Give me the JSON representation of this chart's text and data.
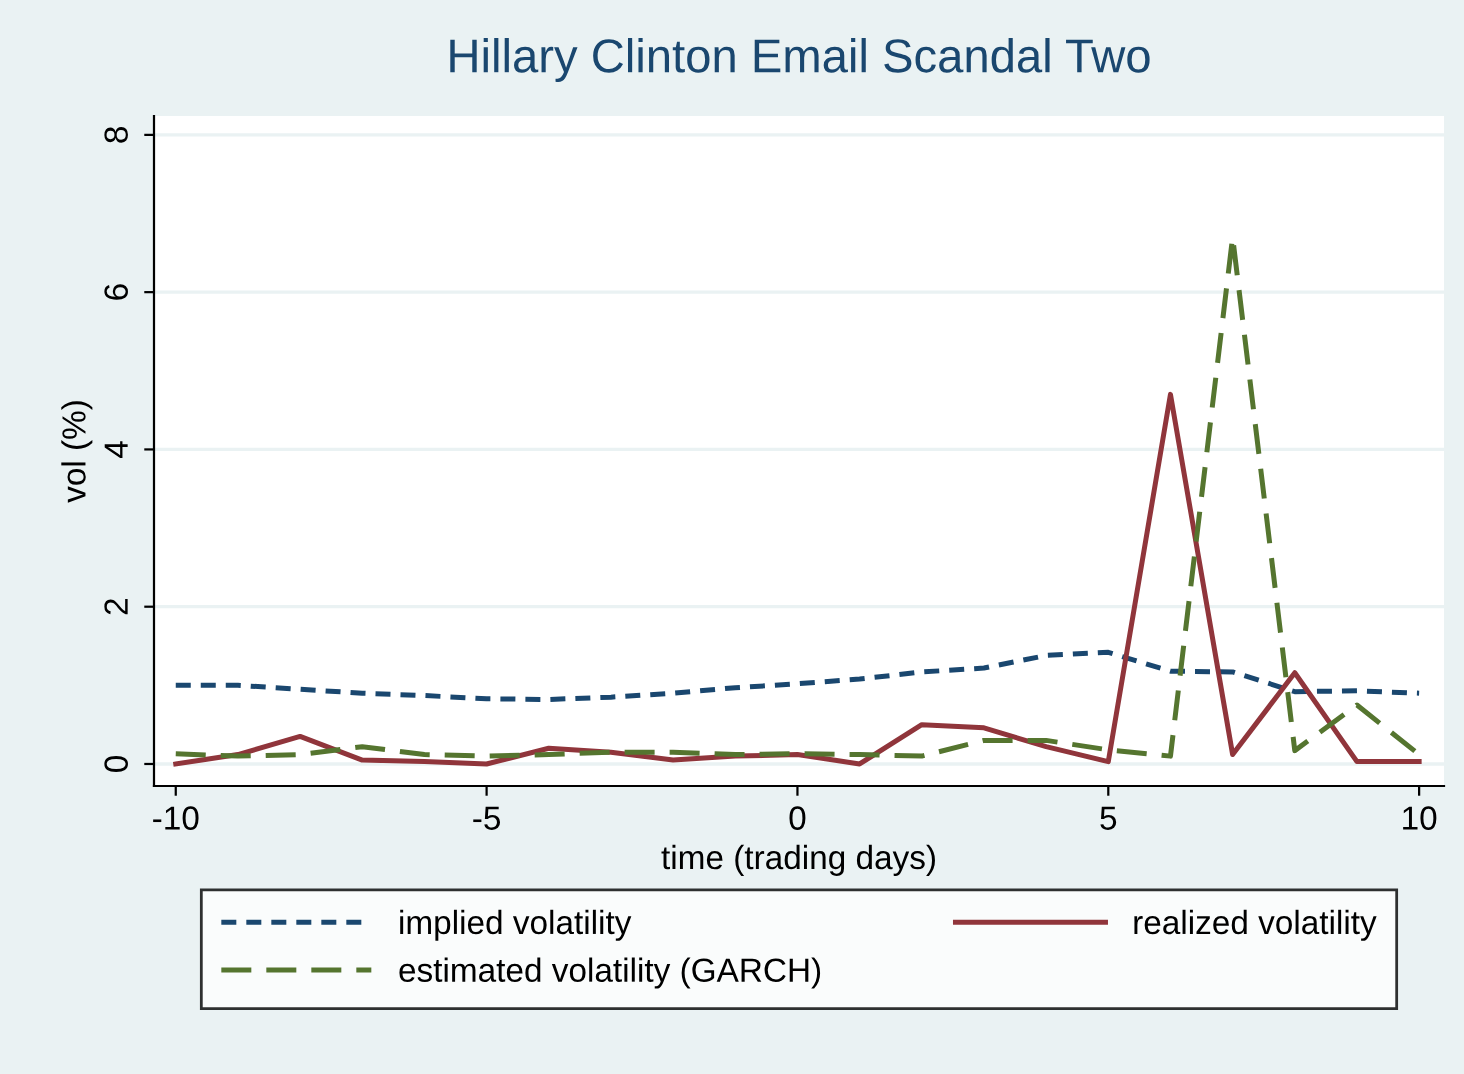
{
  "chart_data": {
    "type": "line",
    "title": "Hillary Clinton Email Scandal Two",
    "xlabel": "time (trading days)",
    "ylabel": "vol (%)",
    "x": [
      -10,
      -9,
      -8,
      -7,
      -6,
      -5,
      -4,
      -3,
      -2,
      -1,
      0,
      1,
      2,
      3,
      4,
      5,
      6,
      7,
      8,
      9,
      10
    ],
    "series": [
      {
        "name": "implied volatility",
        "color": "#1a476f",
        "line_style": "dashed",
        "values": [
          1.0,
          1.0,
          0.95,
          0.9,
          0.87,
          0.83,
          0.82,
          0.85,
          0.9,
          0.97,
          1.02,
          1.08,
          1.17,
          1.22,
          1.38,
          1.42,
          1.18,
          1.17,
          0.92,
          0.93,
          0.9
        ]
      },
      {
        "name": "realized volatility",
        "color": "#90353b",
        "line_style": "solid",
        "values": [
          0.0,
          0.12,
          0.35,
          0.05,
          0.03,
          0.0,
          0.2,
          0.15,
          0.05,
          0.1,
          0.12,
          0.0,
          0.5,
          0.46,
          0.22,
          0.03,
          4.7,
          0.12,
          1.16,
          0.03,
          0.03
        ]
      },
      {
        "name": "estimated volatility (GARCH)",
        "color": "#55752f",
        "line_style": "dashed",
        "values": [
          0.13,
          0.1,
          0.12,
          0.22,
          0.12,
          0.1,
          0.12,
          0.15,
          0.15,
          0.12,
          0.13,
          0.12,
          0.1,
          0.3,
          0.3,
          0.18,
          0.1,
          6.7,
          0.17,
          0.75,
          0.12
        ]
      }
    ],
    "xlim": [
      -10.35,
      10.4
    ],
    "ylim": [
      -0.28,
      8.24
    ],
    "xticks": [
      -10,
      -5,
      0,
      5,
      10
    ],
    "yticks": [
      0,
      2,
      4,
      6,
      8
    ],
    "grid": "y",
    "legend": "bottom"
  }
}
